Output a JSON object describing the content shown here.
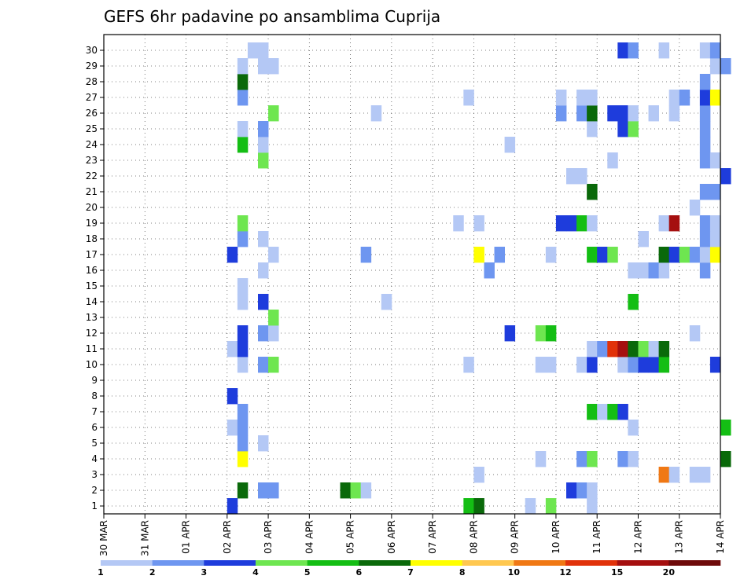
{
  "chart_data": {
    "type": "heatmap",
    "title": "GEFS 6hr padavine po ansamblima Cuprija",
    "xlabel": "",
    "ylabel": "",
    "x_tick_labels": [
      "30 MAR",
      "31 MAR",
      "01 APR",
      "02 APR",
      "03 APR",
      "04 APR",
      "05 APR",
      "06 APR",
      "07 APR",
      "08 APR",
      "09 APR",
      "10 APR",
      "11 APR",
      "12 APR",
      "13 APR",
      "14 APR"
    ],
    "y_tick_labels": [
      "1",
      "2",
      "3",
      "4",
      "5",
      "6",
      "7",
      "8",
      "9",
      "10",
      "11",
      "12",
      "13",
      "14",
      "15",
      "16",
      "17",
      "18",
      "19",
      "20",
      "21",
      "22",
      "23",
      "24",
      "25",
      "26",
      "27",
      "28",
      "29",
      "30"
    ],
    "ylim": [
      1,
      30
    ],
    "grid": true,
    "time_steps_per_day": 4,
    "colorbar": {
      "labels": [
        "1",
        "2",
        "3",
        "4",
        "5",
        "6",
        "7",
        "8",
        "10",
        "12",
        "15",
        "20"
      ],
      "colors": [
        "#b4c8f5",
        "#6e96f0",
        "#1e3cdc",
        "#6ee650",
        "#14be14",
        "#0a690a",
        "#ffff00",
        "#ffc850",
        "#f07814",
        "#e1320a",
        "#a50f0f",
        "#6e0a0a"
      ]
    },
    "cells": [
      {
        "m": 1,
        "t": "02 APR 00",
        "c": 2
      },
      {
        "m": 1,
        "t": "07 APR 18",
        "c": 4
      },
      {
        "m": 1,
        "t": "08 APR 00",
        "c": 5
      },
      {
        "m": 1,
        "t": "09 APR 06",
        "c": 0
      },
      {
        "m": 1,
        "t": "09 APR 18",
        "c": 3
      },
      {
        "m": 1,
        "t": "10 APR 18",
        "c": 0
      },
      {
        "m": 2,
        "t": "02 APR 06",
        "c": 5
      },
      {
        "m": 2,
        "t": "02 APR 18",
        "c": 1
      },
      {
        "m": 2,
        "t": "03 APR 00",
        "c": 1
      },
      {
        "m": 2,
        "t": "04 APR 18",
        "c": 5
      },
      {
        "m": 2,
        "t": "05 APR 00",
        "c": 3
      },
      {
        "m": 2,
        "t": "05 APR 06",
        "c": 0
      },
      {
        "m": 2,
        "t": "10 APR 06",
        "c": 2
      },
      {
        "m": 2,
        "t": "10 APR 12",
        "c": 1
      },
      {
        "m": 2,
        "t": "10 APR 18",
        "c": 0
      },
      {
        "m": 3,
        "t": "08 APR 00",
        "c": 0
      },
      {
        "m": 3,
        "t": "12 APR 12",
        "c": 8
      },
      {
        "m": 3,
        "t": "12 APR 18",
        "c": 0
      },
      {
        "m": 3,
        "t": "13 APR 06",
        "c": 0
      },
      {
        "m": 3,
        "t": "13 APR 12",
        "c": 0
      },
      {
        "m": 4,
        "t": "02 APR 06",
        "c": 6
      },
      {
        "m": 4,
        "t": "09 APR 12",
        "c": 0
      },
      {
        "m": 4,
        "t": "10 APR 12",
        "c": 1
      },
      {
        "m": 4,
        "t": "10 APR 18",
        "c": 3
      },
      {
        "m": 4,
        "t": "11 APR 12",
        "c": 1
      },
      {
        "m": 4,
        "t": "11 APR 18",
        "c": 0
      },
      {
        "m": 4,
        "t": "14 APR 00",
        "c": 5
      },
      {
        "m": 5,
        "t": "02 APR 06",
        "c": 1
      },
      {
        "m": 5,
        "t": "02 APR 18",
        "c": 0
      },
      {
        "m": 6,
        "t": "02 APR 00",
        "c": 0
      },
      {
        "m": 6,
        "t": "02 APR 06",
        "c": 1
      },
      {
        "m": 6,
        "t": "11 APR 18",
        "c": 0
      },
      {
        "m": 6,
        "t": "14 APR 00",
        "c": 4
      },
      {
        "m": 7,
        "t": "02 APR 06",
        "c": 1
      },
      {
        "m": 7,
        "t": "10 APR 18",
        "c": 4
      },
      {
        "m": 7,
        "t": "11 APR 00",
        "c": 0
      },
      {
        "m": 7,
        "t": "11 APR 06",
        "c": 4
      },
      {
        "m": 7,
        "t": "11 APR 12",
        "c": 2
      },
      {
        "m": 8,
        "t": "02 APR 00",
        "c": 2
      },
      {
        "m": 10,
        "t": "02 APR 06",
        "c": 0
      },
      {
        "m": 10,
        "t": "02 APR 18",
        "c": 1
      },
      {
        "m": 10,
        "t": "03 APR 00",
        "c": 3
      },
      {
        "m": 10,
        "t": "07 APR 18",
        "c": 0
      },
      {
        "m": 10,
        "t": "09 APR 12",
        "c": 0
      },
      {
        "m": 10,
        "t": "09 APR 18",
        "c": 0
      },
      {
        "m": 10,
        "t": "10 APR 12",
        "c": 0
      },
      {
        "m": 10,
        "t": "10 APR 18",
        "c": 2
      },
      {
        "m": 10,
        "t": "11 APR 12",
        "c": 0
      },
      {
        "m": 10,
        "t": "11 APR 18",
        "c": 1
      },
      {
        "m": 10,
        "t": "12 APR 00",
        "c": 2
      },
      {
        "m": 10,
        "t": "12 APR 06",
        "c": 2
      },
      {
        "m": 10,
        "t": "12 APR 12",
        "c": 4
      },
      {
        "m": 10,
        "t": "13 APR 18",
        "c": 2
      },
      {
        "m": 11,
        "t": "02 APR 00",
        "c": 0
      },
      {
        "m": 11,
        "t": "02 APR 06",
        "c": 2
      },
      {
        "m": 11,
        "t": "10 APR 18",
        "c": 0
      },
      {
        "m": 11,
        "t": "11 APR 00",
        "c": 1
      },
      {
        "m": 11,
        "t": "11 APR 06",
        "c": 9
      },
      {
        "m": 11,
        "t": "11 APR 12",
        "c": 10
      },
      {
        "m": 11,
        "t": "11 APR 18",
        "c": 5
      },
      {
        "m": 11,
        "t": "12 APR 00",
        "c": 3
      },
      {
        "m": 11,
        "t": "12 APR 06",
        "c": 0
      },
      {
        "m": 11,
        "t": "12 APR 12",
        "c": 5
      },
      {
        "m": 12,
        "t": "02 APR 06",
        "c": 2
      },
      {
        "m": 12,
        "t": "02 APR 18",
        "c": 1
      },
      {
        "m": 12,
        "t": "03 APR 00",
        "c": 0
      },
      {
        "m": 12,
        "t": "08 APR 18",
        "c": 2
      },
      {
        "m": 12,
        "t": "09 APR 12",
        "c": 3
      },
      {
        "m": 12,
        "t": "09 APR 18",
        "c": 4
      },
      {
        "m": 12,
        "t": "13 APR 06",
        "c": 0
      },
      {
        "m": 13,
        "t": "03 APR 00",
        "c": 3
      },
      {
        "m": 14,
        "t": "02 APR 06",
        "c": 0
      },
      {
        "m": 14,
        "t": "02 APR 18",
        "c": 2
      },
      {
        "m": 14,
        "t": "05 APR 18",
        "c": 0
      },
      {
        "m": 14,
        "t": "11 APR 18",
        "c": 4
      },
      {
        "m": 15,
        "t": "02 APR 06",
        "c": 0
      },
      {
        "m": 16,
        "t": "02 APR 18",
        "c": 0
      },
      {
        "m": 16,
        "t": "08 APR 06",
        "c": 1
      },
      {
        "m": 16,
        "t": "11 APR 18",
        "c": 0
      },
      {
        "m": 16,
        "t": "12 APR 00",
        "c": 0
      },
      {
        "m": 16,
        "t": "12 APR 06",
        "c": 1
      },
      {
        "m": 16,
        "t": "12 APR 12",
        "c": 0
      },
      {
        "m": 16,
        "t": "13 APR 12",
        "c": 1
      },
      {
        "m": 17,
        "t": "02 APR 00",
        "c": 2
      },
      {
        "m": 17,
        "t": "03 APR 00",
        "c": 0
      },
      {
        "m": 17,
        "t": "05 APR 06",
        "c": 1
      },
      {
        "m": 17,
        "t": "08 APR 00",
        "c": 6
      },
      {
        "m": 17,
        "t": "08 APR 12",
        "c": 1
      },
      {
        "m": 17,
        "t": "09 APR 18",
        "c": 0
      },
      {
        "m": 17,
        "t": "10 APR 18",
        "c": 4
      },
      {
        "m": 17,
        "t": "11 APR 00",
        "c": 2
      },
      {
        "m": 17,
        "t": "11 APR 06",
        "c": 3
      },
      {
        "m": 17,
        "t": "12 APR 12",
        "c": 5
      },
      {
        "m": 17,
        "t": "12 APR 18",
        "c": 2
      },
      {
        "m": 17,
        "t": "13 APR 00",
        "c": 3
      },
      {
        "m": 17,
        "t": "13 APR 06",
        "c": 1
      },
      {
        "m": 17,
        "t": "13 APR 12",
        "c": 0
      },
      {
        "m": 17,
        "t": "13 APR 18",
        "c": 6
      },
      {
        "m": 18,
        "t": "02 APR 06",
        "c": 1
      },
      {
        "m": 18,
        "t": "02 APR 18",
        "c": 0
      },
      {
        "m": 18,
        "t": "12 APR 00",
        "c": 0
      },
      {
        "m": 18,
        "t": "13 APR 12",
        "c": 1
      },
      {
        "m": 18,
        "t": "13 APR 18",
        "c": 0
      },
      {
        "m": 19,
        "t": "02 APR 06",
        "c": 3
      },
      {
        "m": 19,
        "t": "07 APR 12",
        "c": 0
      },
      {
        "m": 19,
        "t": "08 APR 00",
        "c": 0
      },
      {
        "m": 19,
        "t": "10 APR 00",
        "c": 2
      },
      {
        "m": 19,
        "t": "10 APR 06",
        "c": 2
      },
      {
        "m": 19,
        "t": "10 APR 12",
        "c": 4
      },
      {
        "m": 19,
        "t": "10 APR 18",
        "c": 0
      },
      {
        "m": 19,
        "t": "12 APR 12",
        "c": 0
      },
      {
        "m": 19,
        "t": "12 APR 18",
        "c": 10
      },
      {
        "m": 19,
        "t": "13 APR 12",
        "c": 1
      },
      {
        "m": 19,
        "t": "13 APR 18",
        "c": 0
      },
      {
        "m": 20,
        "t": "13 APR 06",
        "c": 0
      },
      {
        "m": 21,
        "t": "10 APR 18",
        "c": 5
      },
      {
        "m": 21,
        "t": "13 APR 12",
        "c": 1
      },
      {
        "m": 21,
        "t": "13 APR 18",
        "c": 1
      },
      {
        "m": 22,
        "t": "10 APR 06",
        "c": 0
      },
      {
        "m": 22,
        "t": "10 APR 12",
        "c": 0
      },
      {
        "m": 22,
        "t": "14 APR 00",
        "c": 2
      },
      {
        "m": 23,
        "t": "02 APR 18",
        "c": 3
      },
      {
        "m": 23,
        "t": "11 APR 06",
        "c": 0
      },
      {
        "m": 23,
        "t": "13 APR 12",
        "c": 1
      },
      {
        "m": 23,
        "t": "13 APR 18",
        "c": 0
      },
      {
        "m": 24,
        "t": "02 APR 06",
        "c": 4
      },
      {
        "m": 24,
        "t": "02 APR 18",
        "c": 0
      },
      {
        "m": 24,
        "t": "08 APR 18",
        "c": 0
      },
      {
        "m": 24,
        "t": "13 APR 12",
        "c": 1
      },
      {
        "m": 25,
        "t": "02 APR 06",
        "c": 0
      },
      {
        "m": 25,
        "t": "02 APR 18",
        "c": 1
      },
      {
        "m": 25,
        "t": "10 APR 18",
        "c": 0
      },
      {
        "m": 25,
        "t": "11 APR 12",
        "c": 2
      },
      {
        "m": 25,
        "t": "11 APR 18",
        "c": 3
      },
      {
        "m": 25,
        "t": "13 APR 12",
        "c": 1
      },
      {
        "m": 26,
        "t": "03 APR 00",
        "c": 3
      },
      {
        "m": 26,
        "t": "05 APR 12",
        "c": 0
      },
      {
        "m": 26,
        "t": "10 APR 00",
        "c": 1
      },
      {
        "m": 26,
        "t": "10 APR 12",
        "c": 1
      },
      {
        "m": 26,
        "t": "10 APR 18",
        "c": 5
      },
      {
        "m": 26,
        "t": "11 APR 06",
        "c": 2
      },
      {
        "m": 26,
        "t": "11 APR 12",
        "c": 2
      },
      {
        "m": 26,
        "t": "11 APR 18",
        "c": 0
      },
      {
        "m": 26,
        "t": "12 APR 06",
        "c": 0
      },
      {
        "m": 26,
        "t": "12 APR 18",
        "c": 0
      },
      {
        "m": 26,
        "t": "13 APR 12",
        "c": 1
      },
      {
        "m": 27,
        "t": "02 APR 06",
        "c": 1
      },
      {
        "m": 27,
        "t": "07 APR 18",
        "c": 0
      },
      {
        "m": 27,
        "t": "10 APR 00",
        "c": 0
      },
      {
        "m": 27,
        "t": "10 APR 12",
        "c": 0
      },
      {
        "m": 27,
        "t": "10 APR 18",
        "c": 0
      },
      {
        "m": 27,
        "t": "12 APR 18",
        "c": 0
      },
      {
        "m": 27,
        "t": "13 APR 00",
        "c": 1
      },
      {
        "m": 27,
        "t": "13 APR 12",
        "c": 2
      },
      {
        "m": 27,
        "t": "13 APR 18",
        "c": 6
      },
      {
        "m": 28,
        "t": "02 APR 06",
        "c": 5
      },
      {
        "m": 28,
        "t": "13 APR 12",
        "c": 1
      },
      {
        "m": 29,
        "t": "02 APR 06",
        "c": 0
      },
      {
        "m": 29,
        "t": "02 APR 18",
        "c": 0
      },
      {
        "m": 29,
        "t": "03 APR 00",
        "c": 0
      },
      {
        "m": 29,
        "t": "13 APR 18",
        "c": 0
      },
      {
        "m": 29,
        "t": "14 APR 00",
        "c": 1
      },
      {
        "m": 30,
        "t": "02 APR 12",
        "c": 0
      },
      {
        "m": 30,
        "t": "02 APR 18",
        "c": 0
      },
      {
        "m": 30,
        "t": "11 APR 12",
        "c": 2
      },
      {
        "m": 30,
        "t": "11 APR 18",
        "c": 1
      },
      {
        "m": 30,
        "t": "12 APR 12",
        "c": 0
      },
      {
        "m": 30,
        "t": "13 APR 12",
        "c": 0
      },
      {
        "m": 30,
        "t": "13 APR 18",
        "c": 1
      }
    ]
  }
}
